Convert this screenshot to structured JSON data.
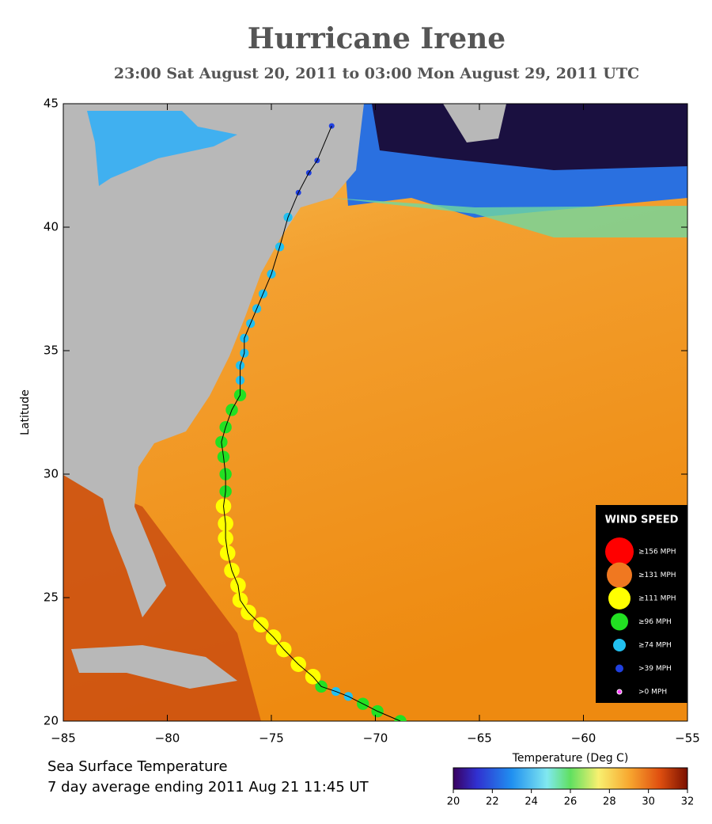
{
  "chart_data": {
    "type": "track-map",
    "title": "Hurricane Irene",
    "subtitle": "23:00 Sat August 20, 2011 to 03:00 Mon August 29, 2011  UTC",
    "ylabel": "Latitude",
    "xlim": [
      -85,
      -55
    ],
    "xticks": [
      {
        "value": -85,
        "label": "−85"
      },
      {
        "value": -80,
        "label": "−80"
      },
      {
        "value": -75,
        "label": "−75"
      },
      {
        "value": -70,
        "label": "−70"
      },
      {
        "value": -65,
        "label": "−65"
      },
      {
        "value": -60,
        "label": "−60"
      },
      {
        "value": -55,
        "label": "−55"
      }
    ],
    "ylim": [
      20,
      45
    ],
    "yticks": [
      20,
      25,
      30,
      35,
      40,
      45
    ],
    "legend_title": "WIND SPEED",
    "categories": [
      {
        "label": "≥156 MPH",
        "color": "#ff0000"
      },
      {
        "label": "≥131 MPH",
        "color": "#f07820"
      },
      {
        "label": "≥111 MPH",
        "color": "#ffff00"
      },
      {
        "label": "≥96 MPH",
        "color": "#22e022"
      },
      {
        "label": "≥74 MPH",
        "color": "#22c0f0"
      },
      {
        "label": ">39 MPH",
        "color": "#2040e0"
      },
      {
        "label": ">0 MPH",
        "color": "#ff40ff"
      }
    ],
    "track": {
      "lon": [
        -68.8,
        -69.9,
        -70.6,
        -71.3,
        -71.9,
        -72.6,
        -73.0,
        -73.7,
        -74.4,
        -74.9,
        -75.5,
        -76.1,
        -76.5,
        -76.6,
        -76.9,
        -77.1,
        -77.2,
        -77.2,
        -77.3,
        -77.2,
        -77.2,
        -77.3,
        -77.4,
        -77.2,
        -76.9,
        -76.5,
        -76.5,
        -76.5,
        -76.3,
        -76.3,
        -76.0,
        -75.7,
        -75.4,
        -75.0,
        -74.6,
        -74.2,
        -73.7,
        -73.2,
        -72.8,
        -72.1
      ],
      "lat": [
        20.0,
        20.4,
        20.7,
        21.0,
        21.2,
        21.4,
        21.8,
        22.3,
        22.9,
        23.4,
        23.9,
        24.4,
        24.9,
        25.5,
        26.1,
        26.8,
        27.4,
        28.0,
        28.7,
        29.3,
        30.0,
        30.7,
        31.3,
        31.9,
        32.6,
        33.2,
        33.8,
        34.4,
        34.9,
        35.5,
        36.1,
        36.7,
        37.3,
        38.1,
        39.2,
        40.4,
        41.4,
        42.2,
        42.7,
        44.1
      ],
      "category": [
        3,
        3,
        3,
        4,
        4,
        3,
        2,
        2,
        2,
        2,
        2,
        2,
        2,
        2,
        2,
        2,
        2,
        2,
        2,
        3,
        3,
        3,
        3,
        3,
        3,
        3,
        4,
        4,
        4,
        4,
        4,
        4,
        4,
        4,
        4,
        4,
        5,
        5,
        5,
        5
      ]
    },
    "caption": [
      "Sea Surface Temperature",
      "7 day average ending 2011 Aug 21 11:45 UT"
    ],
    "colorbar": {
      "label": "Temperature (Deg C)",
      "lim": [
        20,
        32
      ],
      "ticks": [
        20,
        22,
        24,
        26,
        28,
        30,
        32
      ]
    }
  }
}
